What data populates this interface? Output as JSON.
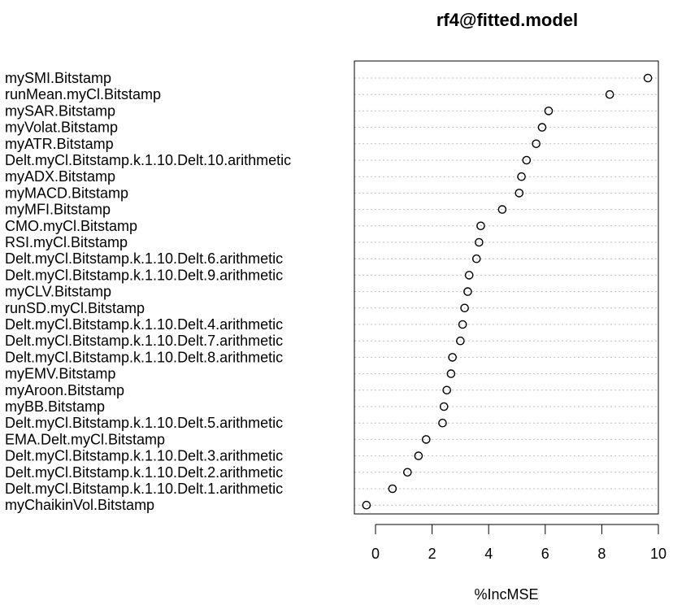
{
  "chart_data": {
    "type": "scatter",
    "title": "rf4@fitted.model",
    "xlabel": "%IncMSE",
    "ylabel": "",
    "xlim": [
      -0.5,
      10
    ],
    "xticks": [
      0,
      2,
      4,
      6,
      8,
      10
    ],
    "xtick_labels": [
      "0",
      "2",
      "4",
      "6",
      "8",
      "10"
    ],
    "grid": "dotted horizontal",
    "legend": "none",
    "marker": "open-circle",
    "categories": [
      "mySMI.Bitstamp",
      "runMean.myCl.Bitstamp",
      "mySAR.Bitstamp",
      "myVolat.Bitstamp",
      "myATR.Bitstamp",
      "Delt.myCl.Bitstamp.k.1.10.Delt.10.arithmetic",
      "myADX.Bitstamp",
      "myMACD.Bitstamp",
      "myMFI.Bitstamp",
      "CMO.myCl.Bitstamp",
      "RSI.myCl.Bitstamp",
      "Delt.myCl.Bitstamp.k.1.10.Delt.6.arithmetic",
      "Delt.myCl.Bitstamp.k.1.10.Delt.9.arithmetic",
      "myCLV.Bitstamp",
      "runSD.myCl.Bitstamp",
      "Delt.myCl.Bitstamp.k.1.10.Delt.4.arithmetic",
      "Delt.myCl.Bitstamp.k.1.10.Delt.7.arithmetic",
      "Delt.myCl.Bitstamp.k.1.10.Delt.8.arithmetic",
      "myEMV.Bitstamp",
      "myAroon.Bitstamp",
      "myBB.Bitstamp",
      "Delt.myCl.Bitstamp.k.1.10.Delt.5.arithmetic",
      "EMA.Delt.myCl.Bitstamp",
      "Delt.myCl.Bitstamp.k.1.10.Delt.3.arithmetic",
      "Delt.myCl.Bitstamp.k.1.10.Delt.2.arithmetic",
      "Delt.myCl.Bitstamp.k.1.10.Delt.1.arithmetic",
      "myChaikinVol.Bitstamp"
    ],
    "values": [
      9.63,
      8.28,
      6.12,
      5.89,
      5.68,
      5.34,
      5.16,
      5.08,
      4.48,
      3.72,
      3.66,
      3.57,
      3.31,
      3.26,
      3.15,
      3.08,
      3.0,
      2.72,
      2.67,
      2.52,
      2.42,
      2.37,
      1.79,
      1.52,
      1.13,
      0.6,
      -0.32
    ]
  }
}
